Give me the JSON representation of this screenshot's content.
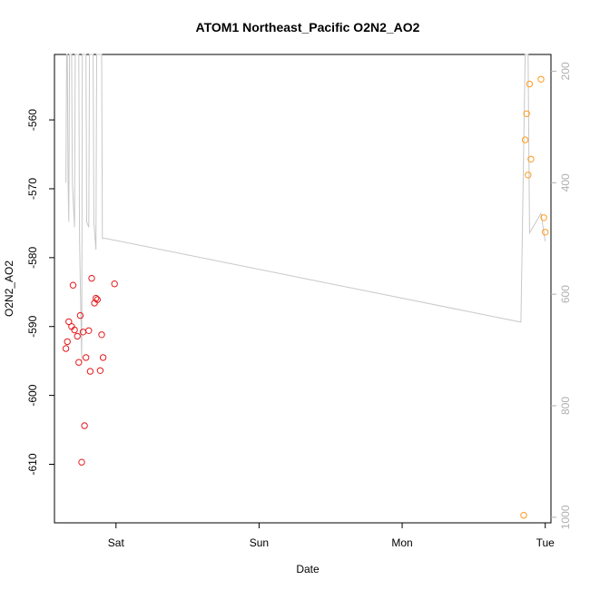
{
  "chart_data": {
    "type": "scatter",
    "title": "ATOM1 Northeast_Pacific O2N2_AO2",
    "xlabel": "Date",
    "ylabel": "O2N2_AO2",
    "x_ticks": [
      "Sat",
      "Sun",
      "Mon",
      "Tue"
    ],
    "xlim_days": [
      -0.43,
      3.04
    ],
    "ylim": [
      -618.5,
      -550.5
    ],
    "y_ticks": [
      -610,
      -600,
      -590,
      -580,
      -570,
      -560
    ],
    "y2lim": [
      1010,
      170
    ],
    "y2_ticks": [
      200,
      400,
      600,
      800,
      1000
    ],
    "colors": {
      "series_red": "#e41a1c",
      "series_orange": "#ff9a1a",
      "line": "#c8c8c8",
      "axis": "#000000",
      "right_axis": "#b0b0b0"
    },
    "series": [
      {
        "marker": "circle",
        "color": "#e41a1c",
        "points": [
          [
            -0.35,
            -593.2
          ],
          [
            -0.34,
            -592.2
          ],
          [
            -0.33,
            -589.3
          ],
          [
            -0.31,
            -590.0
          ],
          [
            -0.3,
            -584.0
          ],
          [
            -0.29,
            -590.5
          ],
          [
            -0.27,
            -591.4
          ],
          [
            -0.26,
            -595.2
          ],
          [
            -0.25,
            -588.4
          ],
          [
            -0.24,
            -609.7
          ],
          [
            -0.23,
            -590.8
          ],
          [
            -0.22,
            -604.4
          ],
          [
            -0.21,
            -594.5
          ],
          [
            -0.19,
            -590.6
          ],
          [
            -0.18,
            -596.5
          ],
          [
            -0.17,
            -583.0
          ],
          [
            -0.15,
            -586.6
          ],
          [
            -0.14,
            -585.9
          ],
          [
            -0.13,
            -586.1
          ],
          [
            -0.11,
            -596.4
          ],
          [
            -0.1,
            -591.2
          ],
          [
            -0.09,
            -594.5
          ],
          [
            -0.01,
            -583.8
          ]
        ]
      },
      {
        "marker": "circle",
        "color": "#ff9a1a",
        "points": [
          [
            2.85,
            -617.4
          ],
          [
            2.86,
            -562.9
          ],
          [
            2.87,
            -559.1
          ],
          [
            2.88,
            -568.0
          ],
          [
            2.89,
            -554.8
          ],
          [
            2.9,
            -565.7
          ],
          [
            2.97,
            -554.1
          ],
          [
            2.99,
            -574.2
          ],
          [
            3.0,
            -576.3
          ]
        ]
      },
      {
        "type": "line",
        "axis": "right",
        "color": "#c8c8c8",
        "points": [
          [
            -0.35,
            400
          ],
          [
            -0.345,
            170
          ],
          [
            -0.34,
            170
          ],
          [
            -0.335,
            400
          ],
          [
            -0.33,
            470
          ],
          [
            -0.325,
            170
          ],
          [
            -0.31,
            170
          ],
          [
            -0.305,
            400
          ],
          [
            -0.29,
            480
          ],
          [
            -0.285,
            170
          ],
          [
            -0.26,
            170
          ],
          [
            -0.255,
            500
          ],
          [
            -0.24,
            720
          ],
          [
            -0.235,
            170
          ],
          [
            -0.21,
            170
          ],
          [
            -0.205,
            470
          ],
          [
            -0.19,
            480
          ],
          [
            -0.185,
            170
          ],
          [
            -0.16,
            170
          ],
          [
            -0.155,
            470
          ],
          [
            -0.14,
            520
          ],
          [
            -0.135,
            170
          ],
          [
            -0.1,
            170
          ],
          [
            -0.095,
            500
          ],
          [
            -0.07,
            500
          ],
          [
            2.83,
            650
          ],
          [
            2.86,
            170
          ],
          [
            2.88,
            170
          ],
          [
            2.89,
            490
          ],
          [
            2.97,
            455
          ],
          [
            3.0,
            505
          ]
        ]
      }
    ]
  }
}
